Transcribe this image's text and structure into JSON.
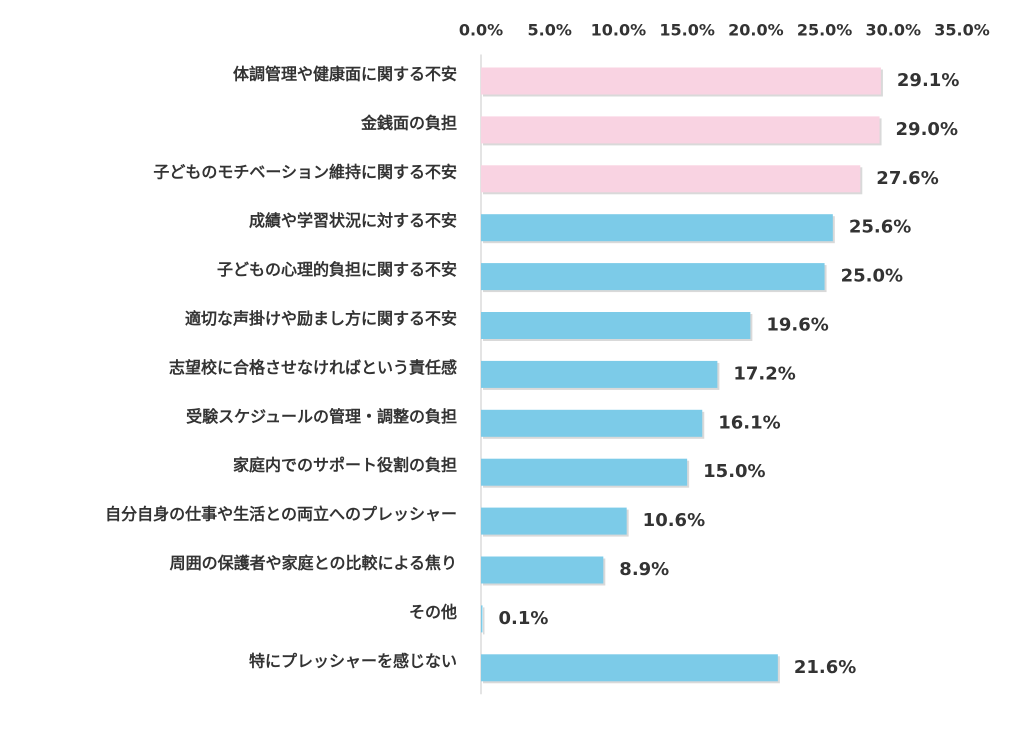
{
  "chart_data": {
    "type": "bar",
    "orientation": "horizontal",
    "title": "",
    "xlabel": "",
    "ylabel": "",
    "xlim": [
      0,
      35
    ],
    "ticks": [
      0,
      5,
      10,
      15,
      20,
      25,
      30,
      35
    ],
    "tick_labels": [
      "0.0%",
      "5.0%",
      "10.0%",
      "15.0%",
      "20.0%",
      "25.0%",
      "30.0%",
      "35.0%"
    ],
    "tick_position": "top",
    "grid": false,
    "legend": "none",
    "colors": {
      "highlight": "#f9d3e2",
      "default": "#7ccbe8",
      "text": "#333333",
      "axis": "#c8c8c8"
    },
    "categories": [
      "体調管理や健康面に関する不安",
      "金銭面の負担",
      "子どものモチベーション維持に関する不安",
      "成績や学習状況に対する不安",
      "子どもの心理的負担に関する不安",
      "適切な声掛けや励まし方に関する不安",
      "志望校に合格させなければという責任感",
      "受験スケジュールの管理・調整の負担",
      "家庭内でのサポート役割の負担",
      "自分自身の仕事や生活との両立へのプレッシャー",
      "周囲の保護者や家庭との比較による焦り",
      "その他",
      "特にプレッシャーを感じない"
    ],
    "values": [
      29.1,
      29.0,
      27.6,
      25.6,
      25.0,
      19.6,
      17.2,
      16.1,
      15.0,
      10.6,
      8.9,
      0.1,
      21.6
    ],
    "value_labels": [
      "29.1%",
      "29.0%",
      "27.6%",
      "25.6%",
      "25.0%",
      "19.6%",
      "17.2%",
      "16.1%",
      "15.0%",
      "10.6%",
      "8.9%",
      "0.1%",
      "21.6%"
    ],
    "highlighted": [
      true,
      true,
      true,
      false,
      false,
      false,
      false,
      false,
      false,
      false,
      false,
      false,
      false
    ]
  }
}
